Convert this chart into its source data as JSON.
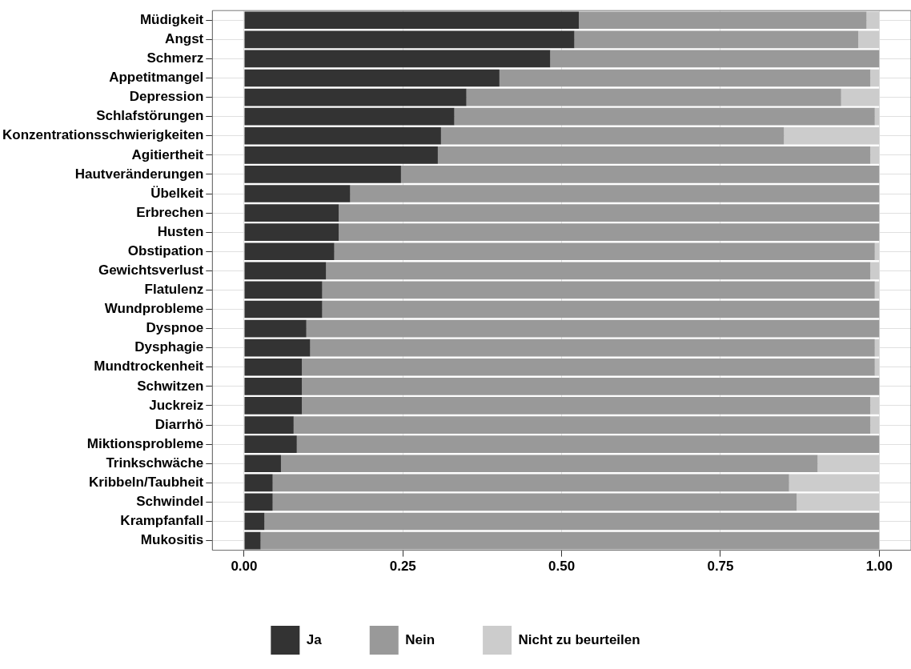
{
  "chart_data": {
    "type": "bar",
    "orientation": "horizontal",
    "stacked": true,
    "categories": [
      "Müdigkeit",
      "Angst",
      "Schmerz",
      "Appetitmangel",
      "Depression",
      "Schlafstörungen",
      "Konzentrationsschwierigkeiten",
      "Agitiertheit",
      "Hautveränderungen",
      "Übelkeit",
      "Erbrechen",
      "Husten",
      "Obstipation",
      "Gewichtsverlust",
      "Flatulenz",
      "Wundprobleme",
      "Dyspnoe",
      "Dysphagie",
      "Mundtrockenheit",
      "Schwitzen",
      "Juckreiz",
      "Diarrhö",
      "Miktionsprobleme",
      "Trinkschwäche",
      "Kribbeln/Taubheit",
      "Schwindel",
      "Krampfanfall",
      "Mukositis"
    ],
    "series": [
      {
        "name": "Ja",
        "color": "#333333",
        "values": [
          0.527,
          0.52,
          0.482,
          0.402,
          0.35,
          0.331,
          0.31,
          0.305,
          0.247,
          0.167,
          0.149,
          0.149,
          0.142,
          0.129,
          0.123,
          0.123,
          0.098,
          0.104,
          0.091,
          0.091,
          0.091,
          0.078,
          0.083,
          0.058,
          0.045,
          0.045,
          0.032,
          0.026
        ]
      },
      {
        "name": "Nein",
        "color": "#999999",
        "values": [
          0.453,
          0.447,
          0.518,
          0.584,
          0.59,
          0.662,
          0.54,
          0.681,
          0.753,
          0.833,
          0.851,
          0.851,
          0.851,
          0.857,
          0.87,
          0.877,
          0.902,
          0.889,
          0.902,
          0.909,
          0.895,
          0.908,
          0.917,
          0.845,
          0.813,
          0.825,
          0.968,
          0.974
        ]
      },
      {
        "name": "Nicht zu beurteilen",
        "color": "#cccccc",
        "values": [
          0.02,
          0.033,
          0,
          0.014,
          0.06,
          0.007,
          0.15,
          0.014,
          0,
          0,
          0,
          0,
          0.007,
          0.014,
          0.007,
          0,
          0,
          0.007,
          0.007,
          0,
          0.014,
          0.014,
          0,
          0.097,
          0.142,
          0.13,
          0,
          0
        ]
      }
    ],
    "xlim": [
      -0.05,
      1.05
    ],
    "xticks": [
      {
        "value": 0,
        "label": "0.00"
      },
      {
        "value": 0.25,
        "label": "0.25"
      },
      {
        "value": 0.5,
        "label": "0.50"
      },
      {
        "value": 0.75,
        "label": "0.75"
      },
      {
        "value": 1,
        "label": "1.00"
      }
    ],
    "grid": true,
    "legend": "bottom"
  }
}
